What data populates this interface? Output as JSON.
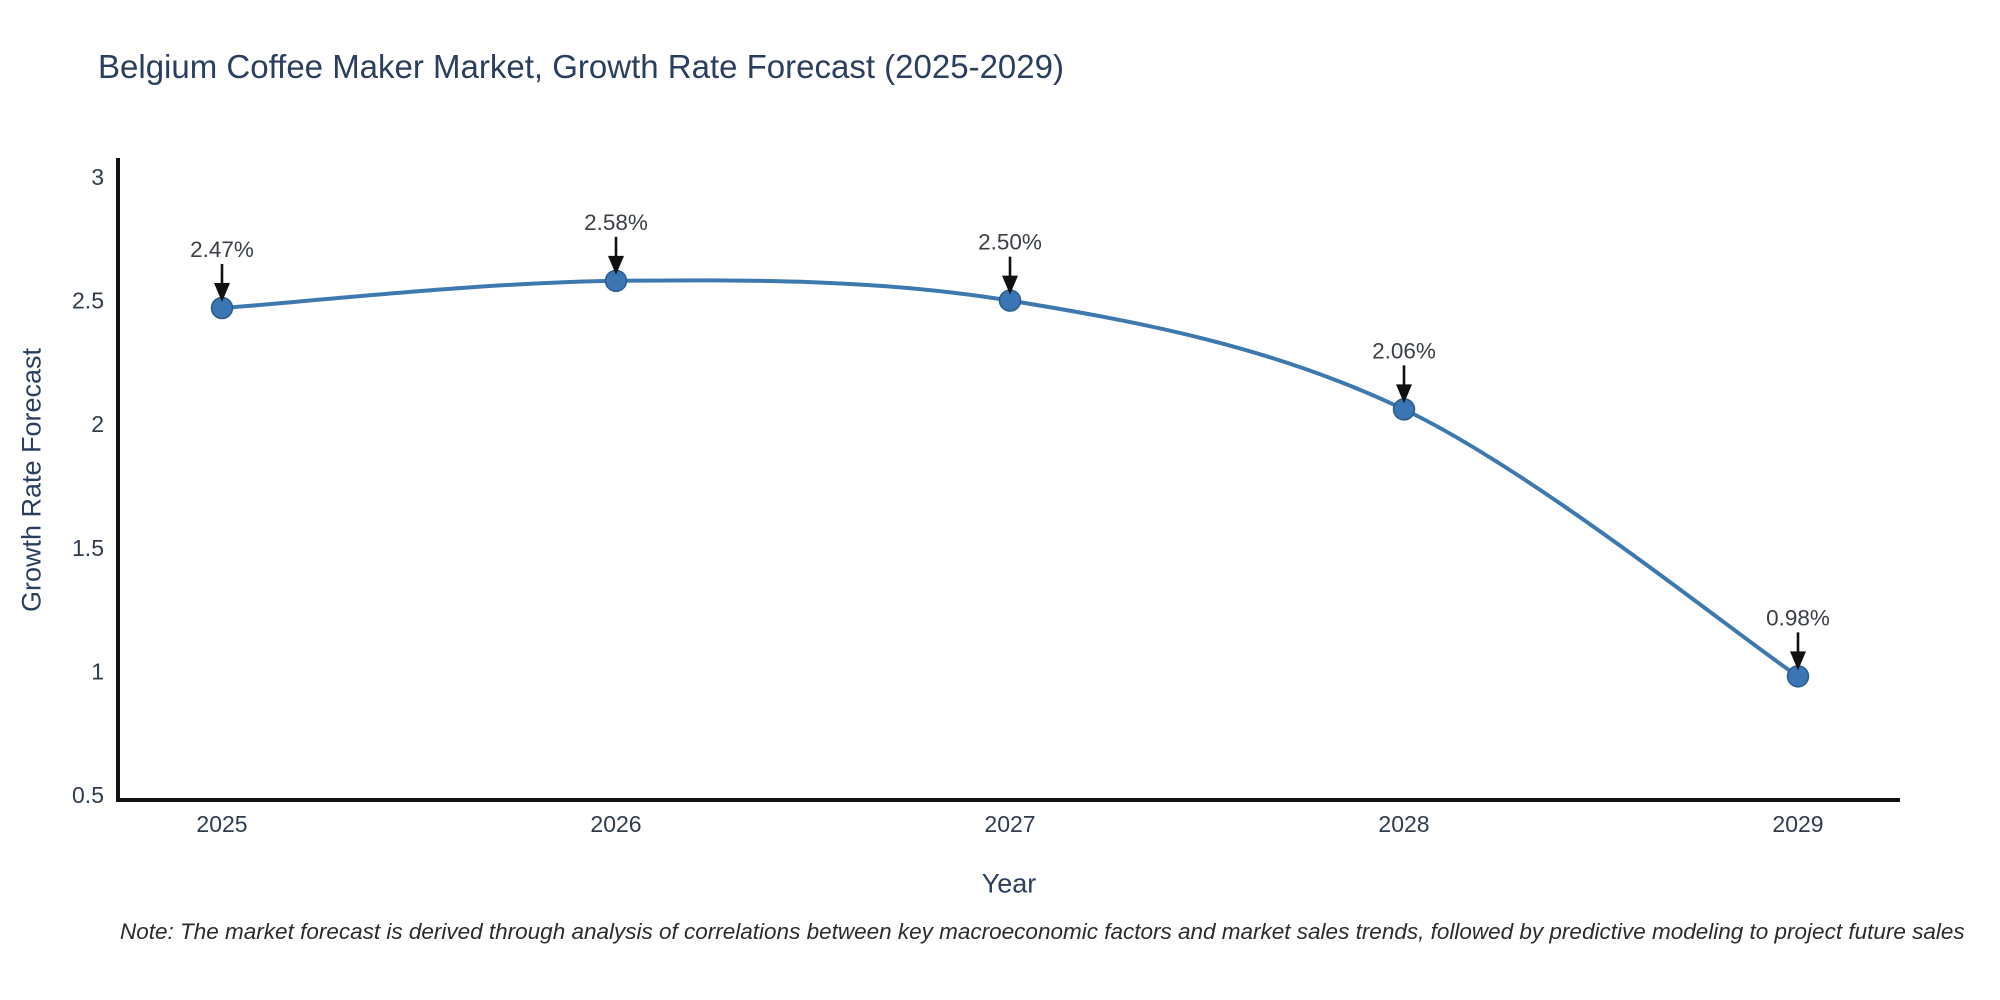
{
  "chart_data": {
    "type": "line",
    "title": "Belgium Coffee Maker Market, Growth Rate Forecast (2025-2029)",
    "xlabel": "Year",
    "ylabel": "Growth Rate Forecast",
    "categories": [
      "2025",
      "2026",
      "2027",
      "2028",
      "2029"
    ],
    "values": [
      2.47,
      2.58,
      2.5,
      2.06,
      0.98
    ],
    "point_labels": [
      "2.47%",
      "2.58%",
      "2.50%",
      "2.06%",
      "0.98%"
    ],
    "ytick_labels": [
      "0.5",
      "1",
      "1.5",
      "2",
      "2.5",
      "3"
    ],
    "ytick_values": [
      0.5,
      1,
      1.5,
      2,
      2.5,
      3
    ],
    "ylim": [
      0.5,
      3
    ],
    "grid": false,
    "legend_position": "none",
    "line_shape": "spline",
    "colors": {
      "line": "#3d79af",
      "marker": "#3a76b4",
      "marker_edge": "#2b5d8c",
      "axis": "#111111",
      "axis_text": "#2e3c4e",
      "title_text": "#2a3f5f",
      "annotation_text": "#3a3f45",
      "annotation_arrow": "#111111",
      "background": "#ffffff"
    },
    "note": "Note: The market forecast is derived through analysis of correlations between key macroeconomic factors and market sales trends, followed by predictive modeling to project future sales"
  }
}
